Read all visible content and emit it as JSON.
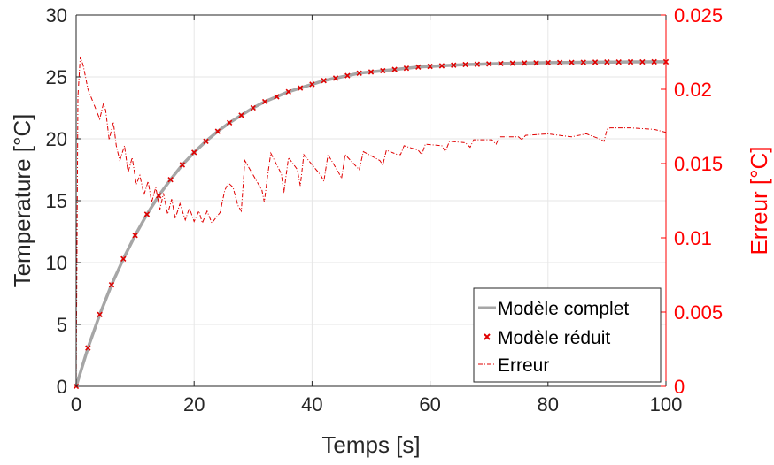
{
  "chart_data": {
    "type": "line",
    "title": "",
    "xlabel": "Temps [s]",
    "ylabel_left": "Temperature [°C]",
    "ylabel_right": "Erreur [°C]",
    "xlim": [
      0,
      100
    ],
    "ylim_left": [
      0,
      30
    ],
    "ylim_right": [
      0,
      0.025
    ],
    "xticks": [
      "0",
      "20",
      "40",
      "60",
      "80",
      "100"
    ],
    "yticks_left": [
      "0",
      "5",
      "10",
      "15",
      "20",
      "25",
      "30"
    ],
    "yticks_right": [
      "0",
      "0.005",
      "0.01",
      "0.015",
      "0.02",
      "0.025"
    ],
    "grid": true,
    "legend_position": "bottom-right",
    "colors": {
      "complet": "#a6a6a6",
      "reduit": "#e00000",
      "erreur": "#e00000",
      "right_axis": "#ff0000",
      "grid": "#e6e6e6"
    },
    "series": [
      {
        "name": "Modèle complet",
        "axis": "left",
        "style": "solid-gray",
        "x": [
          0,
          2,
          4,
          6,
          8,
          10,
          12,
          14,
          16,
          18,
          20,
          22,
          24,
          26,
          28,
          30,
          32,
          34,
          36,
          38,
          40,
          42,
          44,
          46,
          48,
          50,
          52,
          54,
          56,
          58,
          60,
          62,
          64,
          66,
          68,
          70,
          72,
          74,
          76,
          78,
          80,
          82,
          84,
          86,
          88,
          90,
          92,
          94,
          96,
          98,
          100
        ],
        "values": [
          0.0,
          3.1,
          5.8,
          8.2,
          10.3,
          12.2,
          13.9,
          15.4,
          16.7,
          17.9,
          18.9,
          19.8,
          20.6,
          21.3,
          21.9,
          22.5,
          23.0,
          23.4,
          23.8,
          24.1,
          24.4,
          24.7,
          24.9,
          25.1,
          25.3,
          25.4,
          25.5,
          25.6,
          25.7,
          25.8,
          25.85,
          25.9,
          25.95,
          26.0,
          26.02,
          26.05,
          26.08,
          26.1,
          26.12,
          26.13,
          26.15,
          26.16,
          26.17,
          26.18,
          26.19,
          26.2,
          26.2,
          26.21,
          26.21,
          26.22,
          26.22
        ]
      },
      {
        "name": "Modèle réduit",
        "axis": "left",
        "style": "red-x-markers",
        "x": [
          0,
          2,
          4,
          6,
          8,
          10,
          12,
          14,
          16,
          18,
          20,
          22,
          24,
          26,
          28,
          30,
          32,
          34,
          36,
          38,
          40,
          42,
          44,
          46,
          48,
          50,
          52,
          54,
          56,
          58,
          60,
          62,
          64,
          66,
          68,
          70,
          72,
          74,
          76,
          78,
          80,
          82,
          84,
          86,
          88,
          90,
          92,
          94,
          96,
          98,
          100
        ],
        "values": [
          0.0,
          3.1,
          5.8,
          8.2,
          10.3,
          12.2,
          13.9,
          15.4,
          16.7,
          17.9,
          18.9,
          19.8,
          20.6,
          21.3,
          21.9,
          22.5,
          23.0,
          23.4,
          23.8,
          24.1,
          24.4,
          24.7,
          24.9,
          25.1,
          25.3,
          25.4,
          25.5,
          25.6,
          25.7,
          25.8,
          25.85,
          25.9,
          25.95,
          26.0,
          26.02,
          26.05,
          26.08,
          26.1,
          26.12,
          26.13,
          26.15,
          26.16,
          26.17,
          26.18,
          26.19,
          26.2,
          26.2,
          26.21,
          26.21,
          26.22,
          26.22
        ]
      },
      {
        "name": "Erreur",
        "axis": "right",
        "style": "dash-dot-red",
        "x": [
          0,
          0.3,
          0.7,
          1.2,
          2.0,
          3.0,
          4.0,
          4.6,
          5.0,
          5.6,
          6.3,
          6.8,
          7.4,
          8.2,
          8.8,
          9.5,
          10.2,
          10.8,
          11.5,
          12.2,
          12.8,
          13.5,
          14.2,
          14.8,
          15.5,
          16.2,
          16.8,
          17.6,
          18.5,
          19.2,
          20.0,
          20.8,
          21.4,
          22.2,
          23.0,
          23.6,
          24.4,
          25.2,
          25.8,
          26.6,
          27.4,
          28.0,
          28.6,
          31.5,
          31.9,
          32.4,
          33.0,
          34.8,
          35.2,
          36.0,
          37.5,
          38.0,
          38.6,
          41.5,
          42.0,
          42.7,
          44.5,
          45.0,
          45.6,
          47.5,
          48.0,
          48.7,
          51.5,
          52.0,
          52.6,
          54.5,
          55.0,
          55.6,
          58.0,
          58.6,
          59.2,
          62.0,
          62.6,
          63.3,
          66.0,
          66.8,
          67.4,
          70.5,
          71.2,
          71.8,
          75.0,
          75.6,
          76.2,
          80.0,
          82.0,
          84.0,
          86.5,
          88.5,
          89.5,
          90.0,
          90.5,
          94.0,
          98.0,
          100.0
        ],
        "values": [
          0.0,
          0.0195,
          0.0222,
          0.0216,
          0.02,
          0.019,
          0.018,
          0.019,
          0.0186,
          0.0166,
          0.0178,
          0.0162,
          0.0152,
          0.0162,
          0.0144,
          0.0154,
          0.0136,
          0.0142,
          0.0129,
          0.0138,
          0.0124,
          0.0134,
          0.0119,
          0.013,
          0.0116,
          0.0126,
          0.0113,
          0.0123,
          0.0112,
          0.012,
          0.0111,
          0.0118,
          0.011,
          0.0118,
          0.011,
          0.0113,
          0.0117,
          0.0132,
          0.0137,
          0.0134,
          0.0122,
          0.0118,
          0.0152,
          0.0132,
          0.0124,
          0.014,
          0.0157,
          0.0143,
          0.013,
          0.0154,
          0.0146,
          0.0135,
          0.0156,
          0.0142,
          0.0138,
          0.0156,
          0.0144,
          0.014,
          0.0156,
          0.0148,
          0.0146,
          0.0158,
          0.0152,
          0.0149,
          0.0159,
          0.0156,
          0.0156,
          0.0162,
          0.0159,
          0.0156,
          0.0163,
          0.0162,
          0.0158,
          0.0165,
          0.0164,
          0.0161,
          0.0166,
          0.0166,
          0.0163,
          0.0168,
          0.0168,
          0.0166,
          0.0169,
          0.017,
          0.0169,
          0.0168,
          0.017,
          0.0167,
          0.0165,
          0.0173,
          0.0174,
          0.0174,
          0.0173,
          0.0171
        ]
      }
    ]
  }
}
